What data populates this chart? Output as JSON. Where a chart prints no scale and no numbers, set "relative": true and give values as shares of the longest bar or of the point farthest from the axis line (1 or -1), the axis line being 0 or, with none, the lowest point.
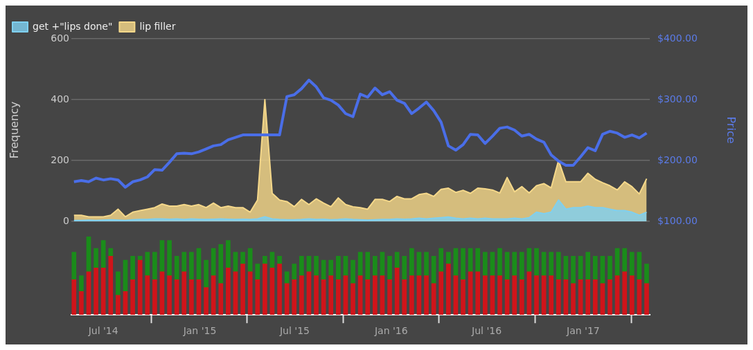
{
  "chart_data": [
    {
      "type": "area",
      "ylabel": "Frequency",
      "y2label": "Price",
      "ylim": [
        0,
        600
      ],
      "yticks": [
        0,
        200,
        400,
        600
      ],
      "y2lim": [
        100,
        400
      ],
      "y2ticks": [
        {
          "value": 100,
          "label": "$100.00"
        },
        {
          "value": 200,
          "label": "$200.00"
        },
        {
          "value": 300,
          "label": "$300.00"
        },
        {
          "value": 400,
          "label": "$400.00"
        }
      ],
      "xlim": [
        "2014-05-01",
        "2017-05-08"
      ],
      "tick_labels": "y",
      "grid": "y",
      "legend": "top left",
      "x": [
        "2014-05-06",
        "2014-05-20",
        "2014-06-03",
        "2014-06-17",
        "2014-07-01",
        "2014-07-15",
        "2014-07-29",
        "2014-08-12",
        "2014-08-26",
        "2014-09-09",
        "2014-09-23",
        "2014-10-07",
        "2014-10-21",
        "2014-11-04",
        "2014-11-18",
        "2014-12-02",
        "2014-12-16",
        "2014-12-30",
        "2015-01-13",
        "2015-01-27",
        "2015-02-10",
        "2015-02-24",
        "2015-03-10",
        "2015-03-24",
        "2015-04-07",
        "2015-04-21",
        "2015-05-05",
        "2015-05-19",
        "2015-06-02",
        "2015-06-16",
        "2015-06-30",
        "2015-07-14",
        "2015-07-28",
        "2015-08-11",
        "2015-08-25",
        "2015-09-08",
        "2015-09-22",
        "2015-10-06",
        "2015-10-20",
        "2015-11-03",
        "2015-11-17",
        "2015-12-01",
        "2015-12-15",
        "2015-12-29",
        "2016-01-12",
        "2016-01-26",
        "2016-02-09",
        "2016-02-23",
        "2016-03-08",
        "2016-03-22",
        "2016-04-05",
        "2016-04-19",
        "2016-05-03",
        "2016-05-17",
        "2016-05-31",
        "2016-06-14",
        "2016-06-28",
        "2016-07-12",
        "2016-07-26",
        "2016-08-09",
        "2016-08-23",
        "2016-09-06",
        "2016-09-20",
        "2016-10-04",
        "2016-10-18",
        "2016-11-01",
        "2016-11-15",
        "2016-11-29",
        "2016-12-13",
        "2016-12-27",
        "2017-01-10",
        "2017-01-24",
        "2017-02-07",
        "2017-02-21",
        "2017-03-07",
        "2017-03-21",
        "2017-04-04",
        "2017-04-18",
        "2017-05-02"
      ],
      "series": [
        {
          "name": "lip filler",
          "color": "#f5d88a",
          "values": [
            20,
            20,
            15,
            15,
            15,
            20,
            40,
            15,
            30,
            35,
            40,
            45,
            57,
            50,
            50,
            55,
            50,
            55,
            45,
            60,
            45,
            50,
            45,
            45,
            30,
            70,
            400,
            92,
            70,
            65,
            48,
            72,
            55,
            74,
            60,
            48,
            77,
            55,
            48,
            45,
            40,
            72,
            72,
            65,
            82,
            74,
            74,
            88,
            92,
            82,
            105,
            109,
            95,
            102,
            92,
            109,
            107,
            103,
            93,
            144,
            97,
            114,
            93,
            117,
            124,
            110,
            200,
            130,
            130,
            130,
            158,
            138,
            127,
            117,
            103,
            130,
            114,
            90,
            140
          ]
        },
        {
          "name": "get +\"lips done\"",
          "color": "#7fd0f0",
          "values": [
            3,
            3,
            4,
            3,
            4,
            5,
            4,
            3,
            5,
            6,
            6,
            8,
            8,
            7,
            8,
            6,
            8,
            7,
            6,
            7,
            8,
            7,
            6,
            7,
            6,
            8,
            15,
            8,
            6,
            5,
            5,
            6,
            8,
            6,
            7,
            5,
            6,
            8,
            6,
            5,
            4,
            5,
            6,
            6,
            8,
            7,
            8,
            10,
            8,
            10,
            12,
            14,
            10,
            8,
            10,
            8,
            10,
            8,
            8,
            8,
            10,
            8,
            12,
            30,
            25,
            30,
            70,
            40,
            45,
            45,
            50,
            45,
            45,
            40,
            35,
            35,
            30,
            20,
            30
          ]
        },
        {
          "type": "line",
          "axis": "y2",
          "color": "#4a6ee8",
          "values": [
            165,
            167,
            165,
            171,
            168,
            170,
            168,
            156,
            165,
            168,
            173,
            185,
            184,
            197,
            211,
            212,
            211,
            214,
            219,
            224,
            226,
            234,
            238,
            242,
            242,
            242,
            242,
            242,
            242,
            305,
            308,
            318,
            332,
            321,
            303,
            299,
            291,
            277,
            272,
            309,
            304,
            319,
            308,
            313,
            299,
            294,
            277,
            286,
            296,
            282,
            263,
            224,
            217,
            226,
            243,
            242,
            228,
            240,
            253,
            255,
            250,
            240,
            243,
            235,
            230,
            209,
            199,
            192,
            192,
            206,
            221,
            216,
            243,
            248,
            245,
            238,
            242,
            237,
            245
          ]
        }
      ]
    },
    {
      "type": "bar",
      "stacked": true,
      "relative": true,
      "xlim": [
        "2014-05-01",
        "2017-05-08"
      ],
      "xticks": [
        {
          "value": "2014-07-01",
          "label": "Jul '14"
        },
        {
          "value": "2015-01-01",
          "label": "Jan '15"
        },
        {
          "value": "2015-07-01",
          "label": "Jul '15"
        },
        {
          "value": "2016-01-01",
          "label": "Jan '16"
        },
        {
          "value": "2016-07-01",
          "label": "Jul '16"
        },
        {
          "value": "2017-01-01",
          "label": "Jan '17"
        }
      ],
      "x": [
        "2014-05-06",
        "2014-05-20",
        "2014-06-03",
        "2014-06-17",
        "2014-07-01",
        "2014-07-15",
        "2014-07-29",
        "2014-08-12",
        "2014-08-26",
        "2014-09-09",
        "2014-09-23",
        "2014-10-07",
        "2014-10-21",
        "2014-11-04",
        "2014-11-18",
        "2014-12-02",
        "2014-12-16",
        "2014-12-30",
        "2015-01-13",
        "2015-01-27",
        "2015-02-10",
        "2015-02-24",
        "2015-03-10",
        "2015-03-24",
        "2015-04-07",
        "2015-04-21",
        "2015-05-05",
        "2015-05-19",
        "2015-06-02",
        "2015-06-16",
        "2015-06-30",
        "2015-07-14",
        "2015-07-28",
        "2015-08-11",
        "2015-08-25",
        "2015-09-08",
        "2015-09-22",
        "2015-10-06",
        "2015-10-20",
        "2015-11-03",
        "2015-11-17",
        "2015-12-01",
        "2015-12-15",
        "2015-12-29",
        "2016-01-12",
        "2016-01-26",
        "2016-02-09",
        "2016-02-23",
        "2016-03-08",
        "2016-03-22",
        "2016-04-05",
        "2016-04-19",
        "2016-05-03",
        "2016-05-17",
        "2016-05-31",
        "2016-06-14",
        "2016-06-28",
        "2016-07-12",
        "2016-07-26",
        "2016-08-09",
        "2016-08-23",
        "2016-09-06",
        "2016-09-20",
        "2016-10-04",
        "2016-10-18",
        "2016-11-01",
        "2016-11-15",
        "2016-11-29",
        "2016-12-13",
        "2016-12-27",
        "2017-01-10",
        "2017-01-24",
        "2017-02-07",
        "2017-02-21",
        "2017-03-07",
        "2017-03-21",
        "2017-04-04",
        "2017-04-18",
        "2017-05-02"
      ],
      "series": [
        {
          "color": "#d0141a",
          "values": [
            0.45,
            0.3,
            0.55,
            0.6,
            0.6,
            0.75,
            0.25,
            0.3,
            0.45,
            0.7,
            0.5,
            0.45,
            0.55,
            0.5,
            0.45,
            0.55,
            0.45,
            0.45,
            0.35,
            0.5,
            0.4,
            0.6,
            0.55,
            0.65,
            0.55,
            0.45,
            0.65,
            0.6,
            0.65,
            0.4,
            0.45,
            0.5,
            0.55,
            0.5,
            0.45,
            0.5,
            0.45,
            0.5,
            0.4,
            0.5,
            0.45,
            0.5,
            0.5,
            0.45,
            0.6,
            0.45,
            0.5,
            0.5,
            0.5,
            0.4,
            0.55,
            0.65,
            0.5,
            0.45,
            0.55,
            0.55,
            0.5,
            0.5,
            0.5,
            0.45,
            0.5,
            0.45,
            0.55,
            0.5,
            0.5,
            0.5,
            0.45,
            0.45,
            0.4,
            0.45,
            0.45,
            0.45,
            0.4,
            0.45,
            0.5,
            0.55,
            0.5,
            0.45,
            0.4
          ]
        },
        {
          "color": "#1a8c1a",
          "values": [
            0.35,
            0.2,
            0.45,
            0.25,
            0.35,
            0.1,
            0.3,
            0.4,
            0.3,
            0.05,
            0.3,
            0.35,
            0.4,
            0.45,
            0.3,
            0.25,
            0.35,
            0.4,
            0.35,
            0.35,
            0.5,
            0.35,
            0.25,
            0.15,
            0.3,
            0.2,
            0.1,
            0.2,
            0.1,
            0.15,
            0.2,
            0.25,
            0.2,
            0.25,
            0.25,
            0.2,
            0.3,
            0.25,
            0.3,
            0.3,
            0.35,
            0.25,
            0.3,
            0.3,
            0.2,
            0.3,
            0.35,
            0.3,
            0.3,
            0.35,
            0.3,
            0.15,
            0.35,
            0.4,
            0.3,
            0.3,
            0.3,
            0.3,
            0.35,
            0.35,
            0.3,
            0.35,
            0.3,
            0.35,
            0.3,
            0.3,
            0.35,
            0.3,
            0.35,
            0.3,
            0.35,
            0.3,
            0.35,
            0.3,
            0.35,
            0.3,
            0.3,
            0.35,
            0.25
          ]
        }
      ]
    }
  ]
}
